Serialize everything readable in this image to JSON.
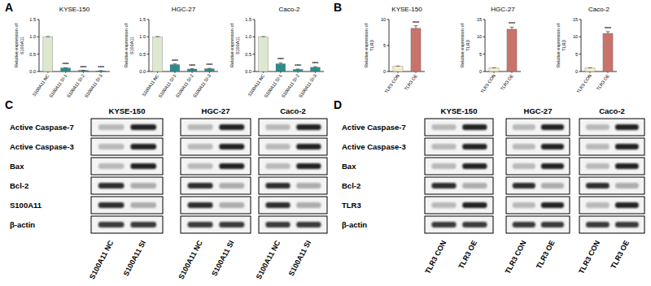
{
  "panel_labels": [
    "A",
    "B",
    "C",
    "D"
  ],
  "chart_data": [
    {
      "type": "bar",
      "title": "KYSE-150",
      "ylabel": "Relative expression of S100A11",
      "categories": [
        "S100A11 NC",
        "S100A11 SI-1",
        "S100A11 SI-2",
        "S100A11 SI-3"
      ],
      "values": [
        1.0,
        0.1,
        0.03,
        0.02
      ],
      "errors": [
        0.01,
        0.01,
        0.005,
        0.005
      ],
      "colors": [
        "#dde8cf",
        "#2e8b8b",
        "#2e8b8b",
        "#2e8b8b"
      ],
      "annotations": [
        null,
        "****",
        "****",
        "****"
      ],
      "ylim": [
        0,
        1.5
      ],
      "yticks": [
        {
          "value": 0,
          "label": "0.0"
        },
        {
          "value": 0.5,
          "label": "0.5"
        },
        {
          "value": 1,
          "label": "1.0"
        },
        {
          "value": 1.5,
          "label": "1.5"
        }
      ]
    },
    {
      "type": "bar",
      "title": "HGC-27",
      "ylabel": "Relative expression of S100A11",
      "categories": [
        "S100A11 NC",
        "S100A11 SI-1",
        "S100A11 SI-2",
        "S100A11 SI-3"
      ],
      "values": [
        1.0,
        0.2,
        0.07,
        0.08
      ],
      "errors": [
        0.01,
        0.02,
        0.01,
        0.01
      ],
      "colors": [
        "#dde8cf",
        "#2e8b8b",
        "#2e8b8b",
        "#2e8b8b"
      ],
      "annotations": [
        null,
        "****",
        "****",
        "****"
      ],
      "ylim": [
        0,
        1.5
      ],
      "yticks": [
        {
          "value": 0,
          "label": "0.0"
        },
        {
          "value": 0.5,
          "label": "0.5"
        },
        {
          "value": 1,
          "label": "1.0"
        },
        {
          "value": 1.5,
          "label": "1.5"
        }
      ]
    },
    {
      "type": "bar",
      "title": "Caco-2",
      "ylabel": "Relative expression of S100A11",
      "categories": [
        "S100A11 NC",
        "S100A11 SI-1",
        "S100A11 SI-2",
        "S100A11 SI-3"
      ],
      "values": [
        1.0,
        0.22,
        0.06,
        0.12
      ],
      "errors": [
        0.01,
        0.03,
        0.01,
        0.02
      ],
      "colors": [
        "#dde8cf",
        "#2e8b8b",
        "#2e8b8b",
        "#2e8b8b"
      ],
      "annotations": [
        null,
        "****",
        "****",
        "****"
      ],
      "ylim": [
        0,
        1.5
      ],
      "yticks": [
        {
          "value": 0,
          "label": "0.0"
        },
        {
          "value": 0.5,
          "label": "0.5"
        },
        {
          "value": 1,
          "label": "1.0"
        },
        {
          "value": 1.5,
          "label": "1.5"
        }
      ]
    },
    {
      "type": "bar",
      "title": "KYSE-150",
      "ylabel": "Relative expression of TLR3",
      "categories": [
        "TLR3 CON",
        "TLR3 OE"
      ],
      "values": [
        1.0,
        8.3
      ],
      "errors": [
        0.05,
        0.5
      ],
      "colors": [
        "#f5ecc8",
        "#c8736b"
      ],
      "annotations": [
        null,
        "****"
      ],
      "ylim": [
        0,
        10
      ],
      "yticks": [
        0,
        5,
        10
      ]
    },
    {
      "type": "bar",
      "title": "HGC-27",
      "ylabel": "Relative expression of TLR3",
      "categories": [
        "TLR3 CON",
        "TLR3 OE"
      ],
      "values": [
        1.0,
        12.2
      ],
      "errors": [
        0.05,
        0.6
      ],
      "colors": [
        "#f5ecc8",
        "#c8736b"
      ],
      "annotations": [
        null,
        "****"
      ],
      "ylim": [
        0,
        15
      ],
      "yticks": [
        0,
        5,
        10,
        15
      ]
    },
    {
      "type": "bar",
      "title": "Caco-2",
      "ylabel": "Relative expression of TLR3",
      "categories": [
        "TLR3 CON",
        "TLR3 OE"
      ],
      "values": [
        1.0,
        11.0
      ],
      "errors": [
        0.05,
        0.5
      ],
      "colors": [
        "#f5ecc8",
        "#c8736b"
      ],
      "annotations": [
        null,
        "****"
      ],
      "ylim": [
        0,
        15
      ],
      "yticks": [
        0,
        5,
        10,
        15
      ]
    }
  ],
  "blots": [
    {
      "cell_lines": [
        "KYSE-150",
        "HGC-27",
        "Caco-2"
      ],
      "rows": [
        "Active Caspase-7",
        "Active Caspase-3",
        "Bax",
        "Bcl-2",
        "S100A11",
        "β-actin"
      ],
      "lanes": [
        "S100A11 NC",
        "S100A11 SI"
      ]
    },
    {
      "cell_lines": [
        "KYSE-150",
        "HGC-27",
        "Caco-2"
      ],
      "rows": [
        "Active Caspase-7",
        "Active Caspase-3",
        "Bax",
        "Bcl-2",
        "TLR3",
        "β-actin"
      ],
      "lanes": [
        "TLR3 CON",
        "TLR3 OE"
      ]
    }
  ]
}
